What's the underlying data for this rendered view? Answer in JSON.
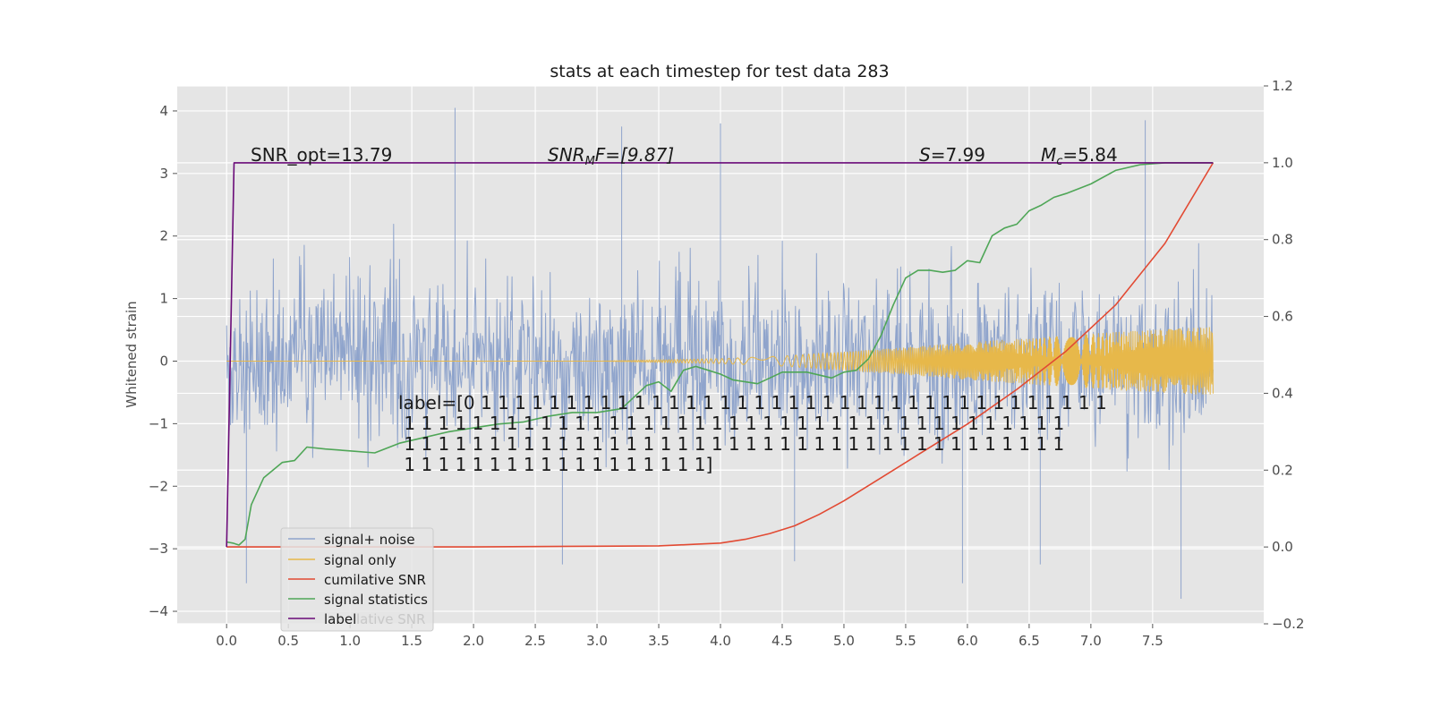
{
  "chart_data": {
    "type": "line",
    "title": "stats at each timestep for test data 283",
    "ylabel": "Whitened strain",
    "xlabel": "",
    "xlim": [
      -0.4,
      8.4
    ],
    "ylim": [
      -4.2,
      4.4
    ],
    "y2lim": [
      -0.2,
      1.2
    ],
    "grid": true,
    "x_ticks": [
      "0.0",
      "0.5",
      "1.0",
      "1.5",
      "2.0",
      "2.5",
      "3.0",
      "3.5",
      "4.0",
      "4.5",
      "5.0",
      "5.5",
      "6.0",
      "6.5",
      "7.0",
      "7.5"
    ],
    "y_ticks": [
      "4",
      "3",
      "2",
      "1",
      "0",
      "−1",
      "−2",
      "−3",
      "−4"
    ],
    "y2_ticks": [
      "1.2",
      "1.0",
      "0.8",
      "0.6",
      "0.4",
      "0.2",
      "0.0",
      "−0.2"
    ],
    "annotations": {
      "snr_opt": "SNR_opt=13.79",
      "snr_mf_sym": "SNR",
      "snr_mf_sub": "M",
      "snr_mf_tail": "F=[9.87]",
      "s_sym": "S",
      "s_tail": "=7.99",
      "mc_sym": "M",
      "mc_sub": "c",
      "mc_tail": "=5.84"
    },
    "label_text": [
      "label=[0 1 1 1 1 1 1 1 1 1 1 1 1 1 1 1 1 1 1 1 1 1 1 1 1 1 1 1 1 1 1 1 1 1 1 1 1 1",
      " 1 1 1 1 1 1 1 1 1 1 1 1 1 1 1 1 1 1 1 1 1 1 1 1 1 1 1 1 1 1 1 1 1 1 1 1 1 1 1",
      " 1 1 1 1 1 1 1 1 1 1 1 1 1 1 1 1 1 1 1 1 1 1 1 1 1 1 1 1 1 1 1 1 1 1 1 1 1 1 1",
      " 1 1 1 1 1 1 1 1 1 1 1 1 1 1 1 1 1 1]"
    ],
    "legend_position": "lower-left",
    "legend_ghost": "lative SNR",
    "colors": {
      "signal_noise": "#8fa4cc",
      "signal_only": "#e7b84a",
      "cumulative_snr": "#e24a33",
      "signal_statistics": "#4fa657",
      "label": "#6a0a78",
      "axes_bg": "#e5e5e5",
      "grid": "#ffffff"
    },
    "series": [
      {
        "name": "signal+ noise",
        "axis": "left",
        "x_range": [
          0.0,
          7.99
        ],
        "envelope": {
          "typical_min": -2.4,
          "typical_max": 2.4,
          "min": -3.8,
          "max": 4.05
        },
        "spikes": [
          [
            1.85,
            4.05
          ],
          [
            7.44,
            3.85
          ],
          [
            4.0,
            3.8
          ],
          [
            3.2,
            3.75
          ],
          [
            7.73,
            -3.8
          ],
          [
            0.16,
            -3.55
          ],
          [
            5.96,
            -3.55
          ],
          [
            2.72,
            -3.25
          ],
          [
            6.59,
            -3.25
          ],
          [
            4.6,
            -3.2
          ]
        ]
      },
      {
        "name": "signal only",
        "axis": "left",
        "x": [
          0.0,
          1.0,
          2.0,
          3.0,
          3.5,
          4.0,
          4.5,
          5.0,
          5.5,
          6.0,
          6.5,
          7.0,
          7.5,
          7.99
        ],
        "amplitude": [
          0.0,
          0.0,
          0.0,
          0.0,
          0.02,
          0.04,
          0.08,
          0.15,
          0.22,
          0.3,
          0.37,
          0.44,
          0.5,
          0.55
        ]
      },
      {
        "name": "cumilative SNR",
        "axis": "right",
        "x": [
          0.0,
          1.0,
          2.0,
          3.0,
          3.5,
          3.8,
          4.0,
          4.2,
          4.4,
          4.6,
          4.8,
          5.0,
          5.3,
          5.6,
          6.0,
          6.4,
          6.8,
          7.2,
          7.6,
          7.99
        ],
        "y": [
          0.0,
          0.0,
          0.0,
          0.002,
          0.003,
          0.007,
          0.01,
          0.02,
          0.035,
          0.055,
          0.085,
          0.12,
          0.18,
          0.24,
          0.32,
          0.41,
          0.51,
          0.63,
          0.79,
          1.0
        ]
      },
      {
        "name": "signal statistics",
        "axis": "right",
        "x": [
          0.0,
          0.05,
          0.1,
          0.15,
          0.2,
          0.3,
          0.45,
          0.55,
          0.65,
          0.8,
          1.0,
          1.2,
          1.4,
          1.6,
          1.8,
          2.0,
          2.2,
          2.4,
          2.6,
          2.8,
          3.0,
          3.2,
          3.3,
          3.4,
          3.5,
          3.6,
          3.7,
          3.8,
          3.9,
          4.0,
          4.1,
          4.2,
          4.3,
          4.4,
          4.5,
          4.7,
          4.9,
          5.0,
          5.1,
          5.2,
          5.3,
          5.4,
          5.5,
          5.6,
          5.7,
          5.8,
          5.9,
          6.0,
          6.1,
          6.2,
          6.3,
          6.4,
          6.5,
          6.6,
          6.7,
          6.8,
          7.0,
          7.2,
          7.4,
          7.6,
          7.8,
          7.99
        ],
        "y": [
          0.013,
          0.01,
          0.005,
          0.02,
          0.11,
          0.18,
          0.22,
          0.225,
          0.26,
          0.255,
          0.25,
          0.245,
          0.27,
          0.285,
          0.3,
          0.31,
          0.32,
          0.325,
          0.34,
          0.35,
          0.35,
          0.36,
          0.39,
          0.42,
          0.43,
          0.405,
          0.46,
          0.47,
          0.46,
          0.45,
          0.435,
          0.43,
          0.425,
          0.44,
          0.455,
          0.455,
          0.44,
          0.455,
          0.46,
          0.49,
          0.55,
          0.63,
          0.7,
          0.72,
          0.72,
          0.715,
          0.72,
          0.745,
          0.74,
          0.81,
          0.83,
          0.84,
          0.875,
          0.89,
          0.91,
          0.92,
          0.945,
          0.98,
          0.995,
          1.0,
          1.0,
          1.0
        ]
      },
      {
        "name": "label",
        "axis": "right",
        "x": [
          0.0,
          0.06,
          7.99
        ],
        "y": [
          0.0,
          1.0,
          1.0
        ]
      }
    ]
  }
}
